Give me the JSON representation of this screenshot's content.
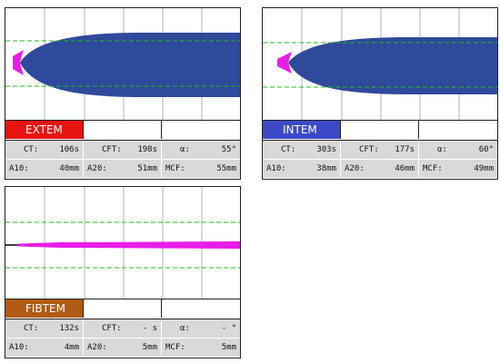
{
  "panels": [
    {
      "id": "extem",
      "tab_label": "EXTEM",
      "tab_color": "#e8140f",
      "trace_kind": "wide",
      "metrics": {
        "ct_label": "CT:",
        "ct_value": "106s",
        "cft_label": "CFT:",
        "cft_value": "198s",
        "alpha_label": "α:",
        "alpha_value": "55°",
        "a10_label": "A10:",
        "a10_value": "40mm",
        "a20_label": "A20:",
        "a20_value": "51mm",
        "mcf_label": "MCF:",
        "mcf_value": "55mm"
      }
    },
    {
      "id": "intem",
      "tab_label": "INTEM",
      "tab_color": "#3d49c7",
      "trace_kind": "wide",
      "metrics": {
        "ct_label": "CT:",
        "ct_value": "303s",
        "cft_label": "CFT:",
        "cft_value": "177s",
        "alpha_label": "α:",
        "alpha_value": "60°",
        "a10_label": "A10:",
        "a10_value": "38mm",
        "a20_label": "A20:",
        "a20_value": "46mm",
        "mcf_label": "MCF:",
        "mcf_value": "49mm"
      }
    },
    {
      "id": "fibtem",
      "tab_label": "FIBTEM",
      "tab_color": "#b05a14",
      "trace_kind": "thin",
      "metrics": {
        "ct_label": "CT:",
        "ct_value": "132s",
        "cft_label": "CFT:",
        "cft_value": "- s",
        "alpha_label": "α:",
        "alpha_value": "- °",
        "a10_label": "A10:",
        "a10_value": "4mm",
        "a20_label": "A20:",
        "a20_value": "5mm",
        "mcf_label": "MCF:",
        "mcf_value": "5mm"
      }
    }
  ],
  "colors": {
    "trace_fill": "#2f4a9a",
    "onset_fill": "#e81ee8",
    "reference_line": "#22bb22",
    "grid_line": "#b0b0b0"
  }
}
